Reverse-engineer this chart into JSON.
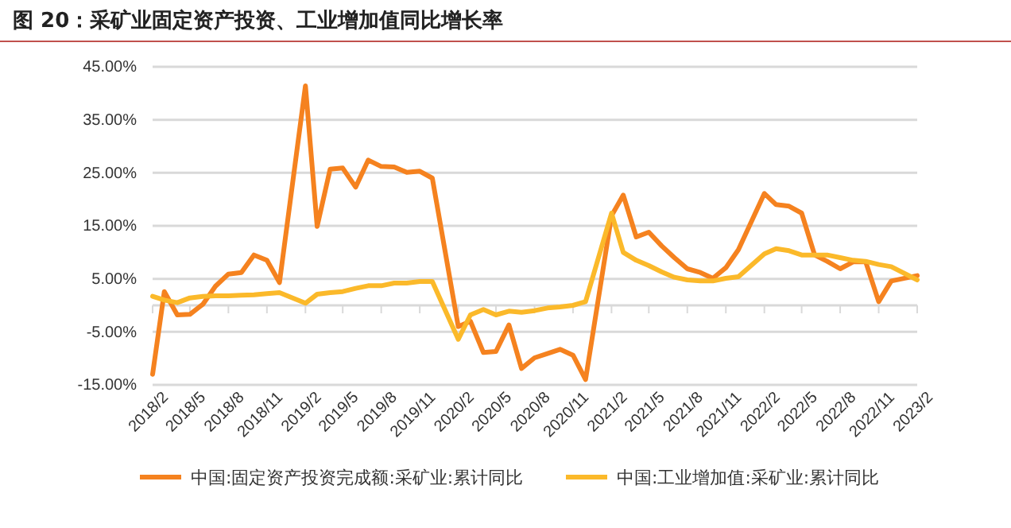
{
  "chart_data": {
    "type": "line",
    "title": "图 20：采矿业固定资产投资、工业增加值同比增长率",
    "xlim": [
      "2018-02",
      "2023-02"
    ],
    "xticks": [
      {
        "value": "2018-02",
        "label": "2018/2"
      },
      {
        "value": "2018-05",
        "label": "2018/5"
      },
      {
        "value": "2018-08",
        "label": "2018/8"
      },
      {
        "value": "2018-11",
        "label": "2018/11"
      },
      {
        "value": "2019-02",
        "label": "2019/2"
      },
      {
        "value": "2019-05",
        "label": "2019/5"
      },
      {
        "value": "2019-08",
        "label": "2019/8"
      },
      {
        "value": "2019-11",
        "label": "2019/11"
      },
      {
        "value": "2020-02",
        "label": "2020/2"
      },
      {
        "value": "2020-05",
        "label": "2020/5"
      },
      {
        "value": "2020-08",
        "label": "2020/8"
      },
      {
        "value": "2020-11",
        "label": "2020/11"
      },
      {
        "value": "2021-02",
        "label": "2021/2"
      },
      {
        "value": "2021-05",
        "label": "2021/5"
      },
      {
        "value": "2021-08",
        "label": "2021/8"
      },
      {
        "value": "2021-11",
        "label": "2021/11"
      },
      {
        "value": "2022-02",
        "label": "2022/2"
      },
      {
        "value": "2022-05",
        "label": "2022/5"
      },
      {
        "value": "2022-08",
        "label": "2022/8"
      },
      {
        "value": "2022-11",
        "label": "2022/11"
      },
      {
        "value": "2023-02",
        "label": "2023/2"
      }
    ],
    "ylim": [
      -15,
      45
    ],
    "yticks": [
      {
        "value": -15,
        "label": "-15.00%"
      },
      {
        "value": -5,
        "label": "-5.00%"
      },
      {
        "value": 0,
        "label": null
      },
      {
        "value": 5,
        "label": "5.00%"
      },
      {
        "value": 15,
        "label": "15.00%"
      },
      {
        "value": 25,
        "label": "25.00%"
      },
      {
        "value": 35,
        "label": "35.00%"
      },
      {
        "value": 45,
        "label": "45.00%"
      }
    ],
    "x": [
      "2018-02",
      "2018-03",
      "2018-04",
      "2018-05",
      "2018-06",
      "2018-07",
      "2018-08",
      "2018-09",
      "2018-10",
      "2018-11",
      "2018-12",
      "2019-02",
      "2019-03",
      "2019-04",
      "2019-05",
      "2019-06",
      "2019-07",
      "2019-08",
      "2019-09",
      "2019-10",
      "2019-11",
      "2019-12",
      "2020-02",
      "2020-03",
      "2020-04",
      "2020-05",
      "2020-06",
      "2020-07",
      "2020-08",
      "2020-09",
      "2020-10",
      "2020-11",
      "2020-12",
      "2021-02",
      "2021-03",
      "2021-04",
      "2021-05",
      "2021-06",
      "2021-07",
      "2021-08",
      "2021-09",
      "2021-10",
      "2021-11",
      "2021-12",
      "2022-02",
      "2022-03",
      "2022-04",
      "2022-05",
      "2022-06",
      "2022-07",
      "2022-08",
      "2022-09",
      "2022-10",
      "2022-11",
      "2022-12",
      "2023-02"
    ],
    "series": [
      {
        "name": "中国:固定资产投资完成额:采矿业:累计同比",
        "color": "#f5821f",
        "values": [
          -13,
          2.6,
          -1.8,
          -1.7,
          0.2,
          3.6,
          5.9,
          6.2,
          9.5,
          8.5,
          4.3,
          41.4,
          14.9,
          25.7,
          25.9,
          22.3,
          27.4,
          26.2,
          26.1,
          25.1,
          25.3,
          24.0,
          -4.0,
          -3.0,
          -8.9,
          -8.7,
          -3.7,
          -11.9,
          -9.9,
          -9.1,
          -8.3,
          -9.4,
          -14.0,
          16.9,
          20.8,
          12.9,
          13.8,
          11.2,
          9.0,
          6.9,
          6.2,
          5.1,
          7.1,
          10.5,
          21.1,
          19.0,
          18.7,
          17.4,
          9.5,
          8.3,
          6.9,
          8.2,
          8.2,
          0.7,
          4.6,
          5.6
        ]
      },
      {
        "name": "中国:工业增加值:采矿业:累计同比",
        "color": "#fbb92a",
        "values": [
          1.7,
          1.0,
          0.5,
          1.4,
          1.7,
          1.8,
          1.8,
          1.9,
          2.0,
          2.2,
          2.4,
          0.4,
          2.1,
          2.4,
          2.6,
          3.2,
          3.7,
          3.7,
          4.2,
          4.2,
          4.5,
          4.5,
          -6.4,
          -1.8,
          -0.8,
          -1.8,
          -1.1,
          -1.3,
          -1.0,
          -0.5,
          -0.3,
          0.0,
          0.7,
          17.4,
          10.0,
          8.5,
          7.5,
          6.3,
          5.3,
          4.8,
          4.6,
          4.6,
          5.1,
          5.4,
          9.7,
          10.7,
          10.3,
          9.5,
          9.5,
          9.5,
          9.0,
          8.5,
          8.3,
          7.7,
          7.3,
          4.8
        ]
      }
    ],
    "grid": "y",
    "legend": "bottom",
    "marker": "none",
    "line_style": "solid"
  }
}
